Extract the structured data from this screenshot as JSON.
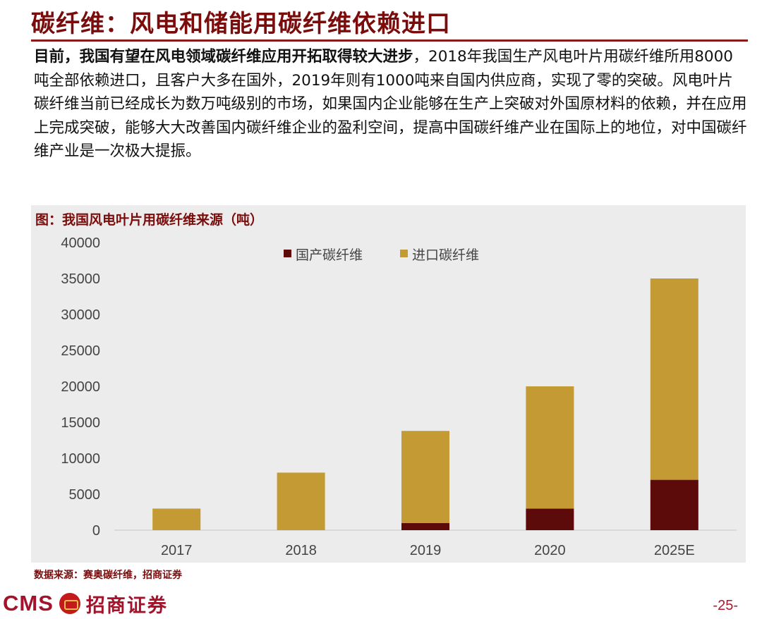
{
  "header": {
    "title": "碳纤维：风电和储能用碳纤维依赖进口"
  },
  "body": {
    "lead": "目前，我国有望在风电领域碳纤维应用开拓取得较大进步",
    "text": "，2018年我国生产风电叶片用碳纤维所用8000吨全部依赖进口，且客户大多在国外，2019年则有1000吨来自国内供应商，实现了零的突破。风电叶片碳纤维当前已经成长为数万吨级别的市场，如果国内企业能够在生产上突破对外国原材料的依赖，并在应用上完成突破，能够大大改善国内碳纤维企业的盈利空间，提高中国碳纤维产业在国际上的地位，对中国碳纤维产业是一次极大提振。"
  },
  "chart_title": "图：我国风电叶片用碳纤维来源（吨）",
  "chart_data": {
    "type": "bar",
    "stacked": true,
    "categories": [
      "2017",
      "2018",
      "2019",
      "2020",
      "2025E"
    ],
    "series": [
      {
        "name": "国产碳纤维",
        "values": [
          0,
          0,
          1000,
          3000,
          7000
        ],
        "color": "#5c0a0a"
      },
      {
        "name": "进口碳纤维",
        "values": [
          3000,
          8000,
          12800,
          17000,
          28000
        ],
        "color": "#c39a33"
      }
    ],
    "ylim": [
      0,
      40000
    ],
    "yticks": [
      0,
      5000,
      10000,
      15000,
      20000,
      25000,
      30000,
      35000,
      40000
    ],
    "gridlines": false,
    "legend_position": "top"
  },
  "source": "数据来源：赛奥碳纤维，招商证券",
  "footer": {
    "logo_text": "CMS",
    "logo_cn": "招商证券",
    "page": "-25-"
  }
}
